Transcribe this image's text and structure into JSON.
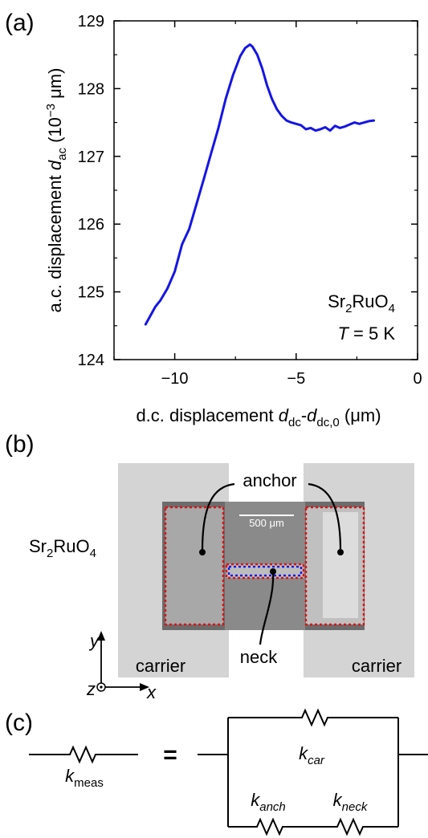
{
  "panels": {
    "a": "(a)",
    "b": "(b)",
    "c": "(c)"
  },
  "chart_data": {
    "type": "line",
    "xlabel": "d.c. displacement d_dc-d_dc,0 (μm)",
    "ylabel": "a.c. displacement d_ac (10^-3 μm)",
    "xlim": [
      -12.5,
      0
    ],
    "ylim": [
      124,
      129
    ],
    "xticks": [
      -10,
      -5,
      0
    ],
    "yticks": [
      124,
      125,
      126,
      127,
      128,
      129
    ],
    "xtick_labels": [
      "−10",
      "−5",
      "0"
    ],
    "ytick_labels": [
      "124",
      "125",
      "126",
      "127",
      "128",
      "129"
    ],
    "color": "#1515e6",
    "annotation_material": "Sr2RuO4",
    "annotation_temperature": "T = 5 K",
    "series": [
      {
        "x": [
          -11.2,
          -11.0,
          -10.8,
          -10.6,
          -10.3,
          -10.0,
          -9.7,
          -9.4,
          -9.1,
          -8.8,
          -8.5,
          -8.2,
          -7.9,
          -7.6,
          -7.3,
          -7.1,
          -6.9,
          -6.8,
          -6.6,
          -6.4,
          -6.2,
          -6.0,
          -5.8,
          -5.6,
          -5.4,
          -5.2,
          -5.0,
          -4.8,
          -4.6,
          -4.4,
          -4.2,
          -4.0,
          -3.8,
          -3.6,
          -3.4,
          -3.2,
          -3.0,
          -2.8,
          -2.6,
          -2.4,
          -2.2,
          -2.0,
          -1.8
        ],
        "y": [
          124.52,
          124.65,
          124.78,
          124.87,
          125.05,
          125.3,
          125.7,
          125.93,
          126.3,
          126.67,
          127.05,
          127.42,
          127.85,
          128.2,
          128.48,
          128.6,
          128.65,
          128.62,
          128.5,
          128.3,
          128.05,
          127.85,
          127.7,
          127.6,
          127.53,
          127.5,
          127.48,
          127.46,
          127.4,
          127.42,
          127.38,
          127.4,
          127.43,
          127.38,
          127.45,
          127.42,
          127.44,
          127.47,
          127.5,
          127.48,
          127.5,
          127.52,
          127.53
        ]
      }
    ]
  },
  "figure_b": {
    "material": "Sr2RuO4",
    "anchor_label": "anchor",
    "neck_label": "neck",
    "carrier_left": "carrier",
    "carrier_right": "carrier",
    "scale_bar": "500 μm",
    "axis_x": "x",
    "axis_y": "y",
    "axis_z": "z"
  },
  "figure_c": {
    "k_meas": "k_meas",
    "equals": "=",
    "k_car": "k_car",
    "k_anch": "k_anch",
    "k_neck": "k_neck"
  }
}
